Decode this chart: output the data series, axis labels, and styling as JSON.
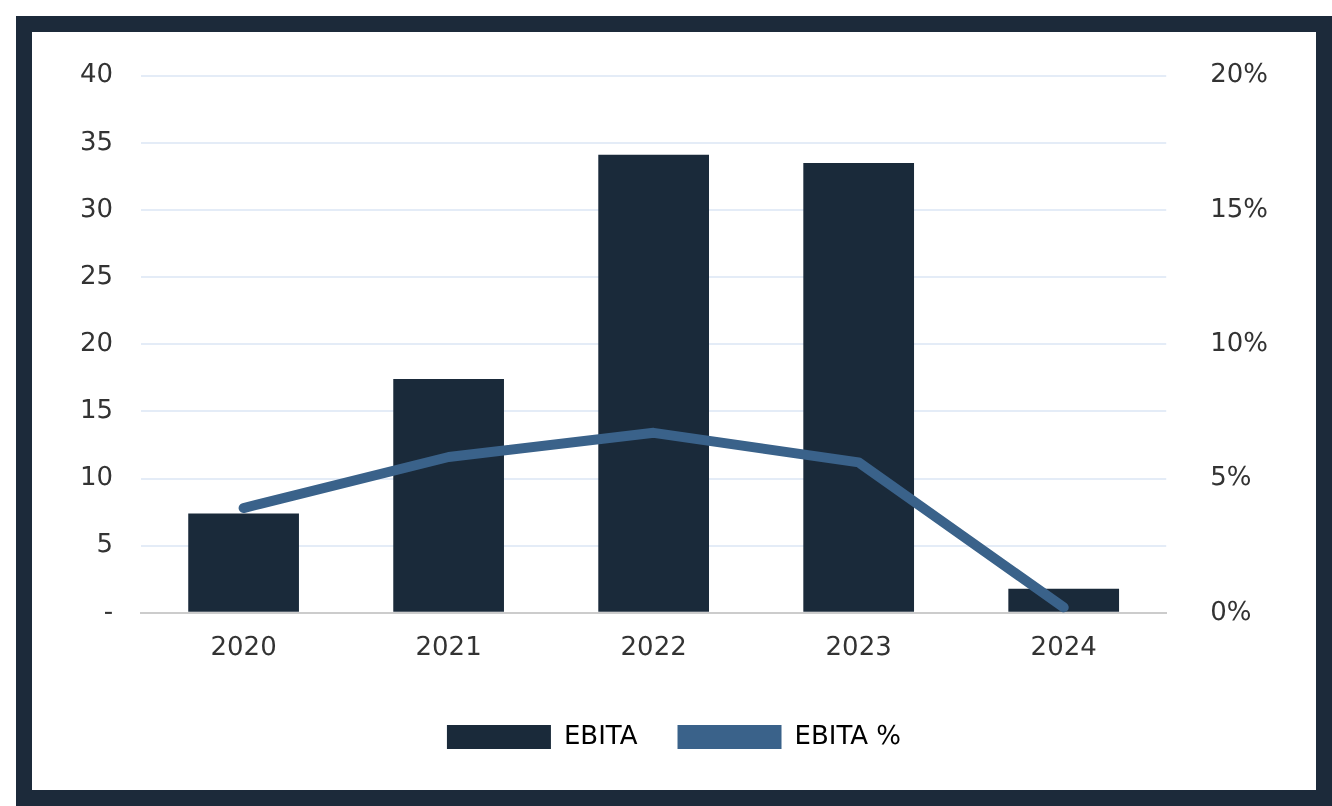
{
  "chart_data": {
    "type": "bar",
    "categories": [
      "2020",
      "2021",
      "2022",
      "2023",
      "2024"
    ],
    "series": [
      {
        "name": "EBITA",
        "color": "#1a2a3a",
        "values": [
          7.4,
          17.4,
          34.1,
          33.5,
          1.8
        ]
      },
      {
        "name": "EBITA %",
        "type": "line",
        "axis": "y2",
        "color": "#3a628a",
        "values": [
          3.9,
          5.8,
          6.7,
          5.6,
          0.2
        ]
      }
    ],
    "ylim": [
      0,
      40
    ],
    "yticks": [
      {
        "value": 0,
        "label": "-"
      },
      5,
      10,
      15,
      20,
      25,
      30,
      35,
      40
    ],
    "y2lim": [
      0,
      20
    ],
    "y2ticks": [
      {
        "value": 0,
        "label": "0%"
      },
      {
        "value": 5,
        "label": "5%"
      },
      {
        "value": 10,
        "label": "10%"
      },
      {
        "value": 15,
        "label": "15%"
      },
      {
        "value": 20,
        "label": "20%"
      }
    ],
    "grid": "y",
    "legend": "bottom",
    "marker": "none",
    "line_style": "solid"
  }
}
